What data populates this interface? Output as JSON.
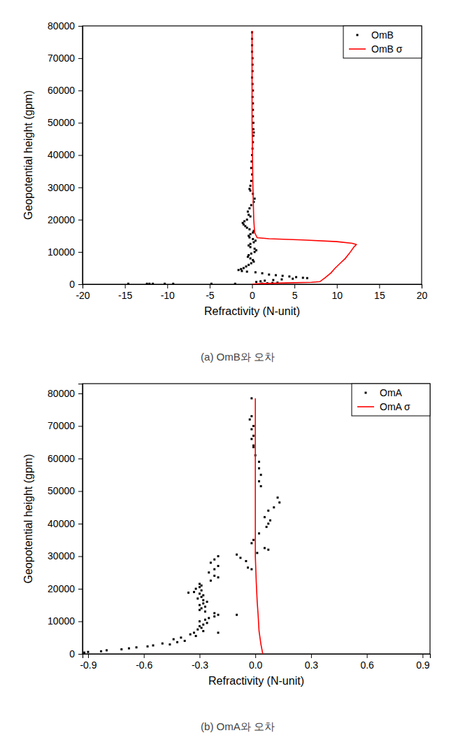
{
  "chart_data": [
    {
      "type": "scatter",
      "title": "(a) OmB와 오차",
      "x_label": "Refractivity (N-unit)",
      "y_label": "Geopotential height (gpm)",
      "xlim": [
        -20,
        20
      ],
      "ylim": [
        0,
        80000
      ],
      "xticks": [
        -20,
        -15,
        -10,
        -5,
        0,
        5,
        10,
        15,
        20
      ],
      "yticks": [
        0,
        10000,
        20000,
        30000,
        40000,
        50000,
        60000,
        70000,
        80000
      ],
      "legend": "upper right",
      "series": [
        {
          "name": "OmB",
          "type": "scatter",
          "color": "#000000",
          "marker": "square",
          "x": [
            0,
            0,
            0,
            0,
            0.05,
            0.05,
            0.05,
            0,
            0.05,
            0.1,
            0.05,
            0.1,
            0.1,
            0.1,
            0.15,
            0.15,
            0.2,
            0.15,
            0.1,
            0.05,
            0,
            -0.05,
            -0.1,
            0,
            -0.1,
            -0.2,
            -0.3,
            -0.2,
            0.1,
            0.3,
            0.2,
            -0.1,
            -0.3,
            -0.5,
            -0.4,
            -0.2,
            -0.6,
            -0.9,
            -1.1,
            -1.0,
            -0.8,
            -0.6,
            -0.3,
            0.2,
            0.1,
            -0.2,
            -0.4,
            -0.3,
            0.1,
            0.4,
            0.2,
            -0.2,
            -0.4,
            -0.2,
            0.3,
            0.5,
            0.3,
            -0.1,
            -0.4,
            -0.5,
            -0.2,
            0.1,
            0.2,
            -0.1,
            -0.4,
            -0.7,
            -1.0,
            -1.3,
            -1.6,
            -1.2,
            -0.6,
            0.4,
            1.2,
            2.0,
            2.8,
            3.6,
            4.4,
            5.2,
            6.0,
            6.5,
            4.8,
            3.5,
            2.5,
            1.5,
            1.0,
            0.5,
            3.0,
            2.4,
            1.8,
            1.2,
            -2.0,
            -4.8,
            -9.3,
            -10.3,
            -11.7,
            -12.1,
            -12.4,
            -14.6
          ],
          "values": [
            78000,
            76000,
            74000,
            72000,
            70000,
            68000,
            66000,
            64000,
            62000,
            60000,
            58000,
            56000,
            54000,
            52000,
            50000,
            48000,
            47000,
            46000,
            44000,
            42000,
            40000,
            38000,
            36000,
            34000,
            32000,
            30500,
            29500,
            29000,
            28000,
            26500,
            25500,
            24500,
            23500,
            22500,
            21500,
            21000,
            20000,
            19500,
            19000,
            18500,
            18000,
            17500,
            17000,
            16500,
            16000,
            15500,
            15000,
            14500,
            14000,
            13500,
            13000,
            12500,
            12000,
            11500,
            11000,
            10500,
            10000,
            9500,
            9000,
            8500,
            8000,
            7500,
            7000,
            6500,
            6000,
            5500,
            5000,
            4700,
            4400,
            4100,
            3900,
            3700,
            3400,
            3000,
            2800,
            2600,
            2400,
            2200,
            2000,
            1900,
            1700,
            1500,
            1300,
            1100,
            900,
            700,
            500,
            400,
            300,
            200,
            150,
            150,
            150,
            150,
            150,
            150,
            150,
            150
          ]
        },
        {
          "name": "OmB σ",
          "type": "line",
          "color": "#ff0000",
          "line_style": "solid",
          "x": [
            0,
            1,
            4,
            7,
            8,
            8.6,
            9.3,
            9.8,
            10.4,
            11,
            11.6,
            12,
            12.3,
            11.8,
            10,
            6,
            2,
            0.6,
            0.3,
            0.2,
            0.1,
            0.05,
            0,
            0,
            0,
            0
          ],
          "values": [
            0,
            200,
            400,
            600,
            800,
            2000,
            3500,
            5000,
            6500,
            8000,
            10000,
            11500,
            12300,
            12700,
            13200,
            13700,
            14100,
            14400,
            16000,
            20000,
            30000,
            40000,
            50000,
            60000,
            70000,
            78500
          ]
        }
      ]
    },
    {
      "type": "scatter",
      "title": "(b) OmA와 오차",
      "x_label": "Refractivity (N-unit)",
      "y_label": "Geopotential height (gpm)",
      "xlim": [
        -0.93,
        0.94
      ],
      "ylim": [
        0,
        83000
      ],
      "xticks": [
        -0.9,
        -0.6,
        -0.3,
        {
          "value": 0,
          "label": "0.0"
        },
        0.3,
        0.6,
        0.9
      ],
      "yticks": [
        0,
        10000,
        20000,
        30000,
        40000,
        50000,
        60000,
        70000,
        80000
      ],
      "legend": "upper right",
      "series": [
        {
          "name": "OmA",
          "type": "scatter",
          "color": "#000000",
          "marker": "square",
          "x": [
            -0.02,
            -0.02,
            -0.03,
            -0.01,
            -0.02,
            -0.01,
            -0.02,
            -0.01,
            -0.01,
            0,
            0.02,
            0.02,
            0.03,
            0.02,
            0.03,
            0.12,
            0.13,
            0.1,
            0.07,
            0.05,
            0.08,
            0.07,
            0.06,
            0.02,
            -0.01,
            -0.02,
            0.05,
            0.07,
            0.01,
            -0.1,
            -0.08,
            -0.05,
            -0.04,
            -0.02,
            -0.2,
            -0.22,
            -0.24,
            -0.2,
            -0.22,
            -0.25,
            -0.22,
            -0.2,
            -0.24,
            -0.3,
            -0.29,
            -0.3,
            -0.32,
            -0.29,
            -0.33,
            -0.36,
            -0.3,
            -0.28,
            -0.29,
            -0.31,
            -0.28,
            -0.26,
            -0.28,
            -0.3,
            -0.27,
            -0.29,
            -0.3,
            -0.27,
            -0.22,
            -0.2,
            -0.1,
            -0.22,
            -0.25,
            -0.27,
            -0.3,
            -0.26,
            -0.28,
            -0.3,
            -0.29,
            -0.31,
            -0.28,
            -0.2,
            -0.33,
            -0.35,
            -0.32,
            -0.4,
            -0.44,
            -0.38,
            -0.42,
            -0.5,
            -0.46,
            -0.55,
            -0.58,
            -0.64,
            -0.68,
            -0.72,
            -0.8,
            -0.83,
            -0.9,
            -0.92,
            -0.95,
            -0.98,
            -1.0
          ],
          "values": [
            78500,
            73000,
            72000,
            70000,
            69000,
            67000,
            66000,
            64000,
            63500,
            61000,
            59000,
            57000,
            55000,
            53000,
            51500,
            48000,
            46500,
            45000,
            44000,
            42000,
            41000,
            40000,
            39000,
            37000,
            35000,
            34000,
            32500,
            32000,
            31000,
            30500,
            29500,
            28500,
            26500,
            26000,
            30000,
            29000,
            28000,
            27000,
            26000,
            25000,
            24000,
            23500,
            22500,
            21500,
            21000,
            20500,
            20000,
            19500,
            19000,
            18800,
            18500,
            18000,
            17500,
            17000,
            16500,
            16000,
            15500,
            15000,
            14500,
            14000,
            13500,
            13000,
            12500,
            12000,
            12000,
            11500,
            11000,
            10500,
            10000,
            9500,
            9000,
            8500,
            8000,
            7500,
            7000,
            6500,
            6500,
            6000,
            5500,
            5000,
            4500,
            4000,
            3600,
            3200,
            2900,
            2600,
            2300,
            2000,
            1700,
            1400,
            1100,
            800,
            600,
            400,
            300,
            200,
            100
          ]
        },
        {
          "name": "OmA σ",
          "type": "line",
          "color": "#ff0000",
          "line_style": "solid",
          "x": [
            0.04,
            0.03,
            0.02,
            0.015,
            0.01,
            0.005,
            0,
            0,
            0,
            0,
            0,
            0
          ],
          "values": [
            0,
            3000,
            7000,
            12000,
            16000,
            22000,
            30000,
            40000,
            50000,
            60000,
            70000,
            78500
          ]
        }
      ]
    }
  ]
}
